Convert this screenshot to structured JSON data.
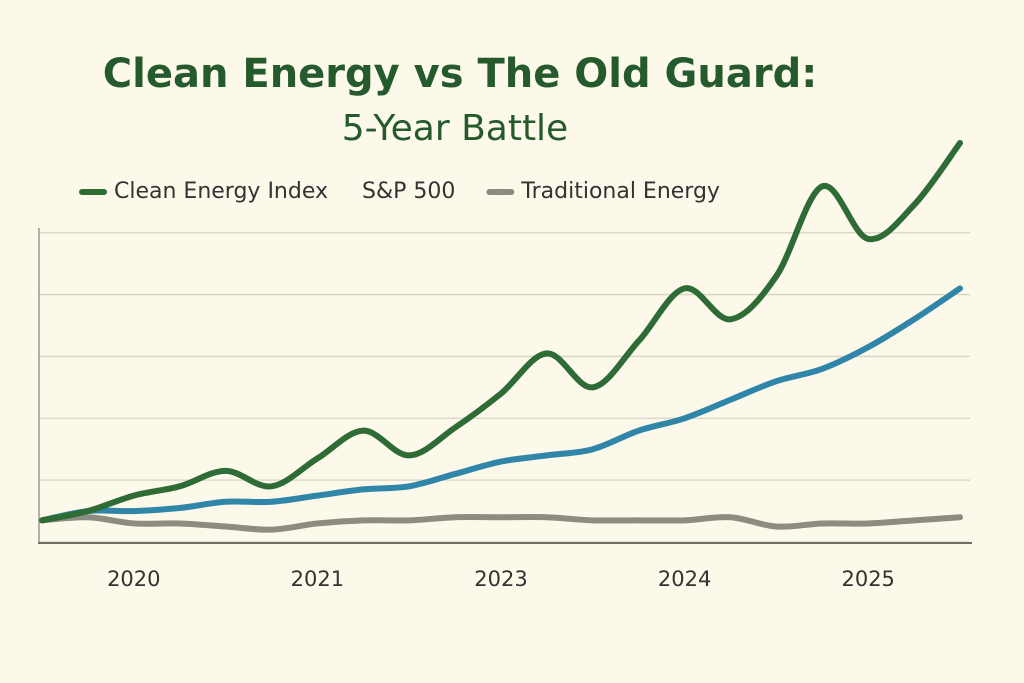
{
  "chart_data": {
    "type": "line",
    "title": "Clean Energy vs The Old Guard:",
    "subtitle": "5-Year Battle",
    "categories": [
      null,
      null,
      "2020",
      null,
      null,
      null,
      "2021",
      null,
      null,
      null,
      "2023",
      null,
      null,
      null,
      "2024",
      null,
      null,
      null,
      "2025",
      null,
      null
    ],
    "series": [
      {
        "name": "Clean Energy Index",
        "color": "#2e6b35",
        "legend_marker": true,
        "values": [
          7,
          10,
          15,
          18,
          23,
          18,
          27,
          36,
          28,
          37,
          48,
          61,
          50,
          65,
          82,
          72,
          86,
          115,
          98,
          109,
          129
        ]
      },
      {
        "name": "S&P 500",
        "color": "#2f86a8",
        "legend_marker": false,
        "values": [
          7,
          10,
          10,
          11,
          13,
          13,
          15,
          17,
          18,
          22,
          26,
          28,
          30,
          36,
          40,
          46,
          52,
          56,
          63,
          72,
          82
        ]
      },
      {
        "name": "Traditional Energy",
        "color": "#8c8c80",
        "legend_marker": true,
        "values": [
          7,
          8,
          6,
          6,
          5,
          4,
          6,
          7,
          7,
          8,
          8,
          8,
          7,
          7,
          7,
          8,
          5,
          6,
          6,
          7,
          8
        ]
      }
    ],
    "ylim": [
      0,
      140
    ],
    "yticks": [
      0,
      20,
      40,
      60,
      80,
      100
    ],
    "ytick_labels": false,
    "grid": true,
    "legend": "top"
  }
}
